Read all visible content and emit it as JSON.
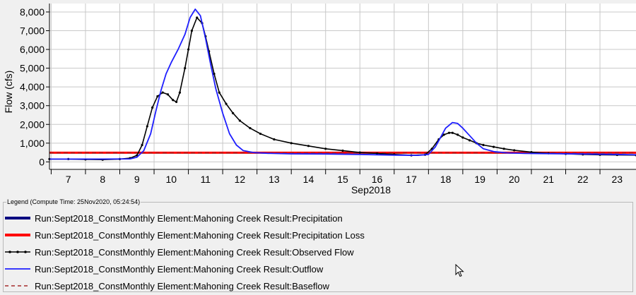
{
  "chart_data": {
    "type": "line",
    "title": "",
    "xlabel": "Sep2018",
    "ylabel": "Flow (cfs)",
    "xlim": [
      6.45,
      23.55
    ],
    "ylim": [
      -400,
      8450
    ],
    "x_ticks": [
      7,
      8,
      9,
      10,
      11,
      12,
      13,
      14,
      15,
      16,
      17,
      18,
      19,
      20,
      21,
      22,
      23
    ],
    "x_tick_labels": [
      "7",
      "8",
      "9",
      "10",
      "11",
      "12",
      "13",
      "14",
      "15",
      "16",
      "17",
      "18",
      "19",
      "20",
      "21",
      "22",
      "23"
    ],
    "y_ticks": [
      0,
      1000,
      2000,
      3000,
      4000,
      5000,
      6000,
      7000,
      8000
    ],
    "y_tick_labels": [
      "0",
      "1,000",
      "2,000",
      "3,000",
      "4,000",
      "5,000",
      "6,000",
      "7,000",
      "8,000"
    ],
    "grid": true,
    "legend_position": "bottom",
    "series": [
      {
        "name": "Run:Sept2018_ConstMonthly Element:Mahoning Creek Result:Precipitation",
        "color": "#000080",
        "style": "thick",
        "x": [],
        "y": []
      },
      {
        "name": "Run:Sept2018_ConstMonthly Element:Mahoning Creek Result:Precipitation Loss",
        "color": "#ff0000",
        "style": "thick",
        "x": [
          6.45,
          23.55
        ],
        "y": [
          490,
          490
        ]
      },
      {
        "name": "Run:Sept2018_ConstMonthly Element:Mahoning Creek Result:Observed Flow",
        "color": "#000000",
        "style": "markers",
        "x": [
          6.45,
          7.0,
          7.5,
          8.0,
          8.5,
          8.8,
          9.0,
          9.15,
          9.3,
          9.45,
          9.6,
          9.75,
          9.9,
          10.05,
          10.15,
          10.25,
          10.4,
          10.5,
          10.6,
          10.75,
          10.9,
          11.0,
          11.1,
          11.25,
          11.4,
          11.6,
          11.8,
          12.0,
          12.3,
          12.6,
          13.0,
          13.5,
          14.0,
          14.5,
          15.0,
          15.5,
          16.0,
          16.5,
          17.0,
          17.4,
          17.6,
          17.8,
          17.95,
          18.1,
          18.2,
          18.35,
          18.5,
          18.7,
          18.9,
          19.1,
          19.4,
          19.7,
          20.0,
          20.5,
          21.0,
          21.5,
          22.0,
          22.5,
          23.0,
          23.55
        ],
        "y": [
          150,
          150,
          130,
          120,
          150,
          200,
          350,
          900,
          1900,
          2900,
          3500,
          3700,
          3600,
          3300,
          3200,
          3700,
          5000,
          6000,
          7000,
          7700,
          7400,
          6700,
          5900,
          4700,
          3700,
          3100,
          2600,
          2200,
          1800,
          1500,
          1200,
          1000,
          850,
          700,
          600,
          500,
          450,
          400,
          350,
          380,
          700,
          1200,
          1450,
          1550,
          1550,
          1450,
          1300,
          1150,
          1000,
          900,
          800,
          700,
          620,
          520,
          460,
          430,
          400,
          380,
          370,
          360
        ]
      },
      {
        "name": "Run:Sept2018_ConstMonthly Element:Mahoning Creek Result:Outflow",
        "color": "#1f1fff",
        "style": "line",
        "x": [
          6.45,
          7.0,
          8.0,
          8.8,
          9.0,
          9.2,
          9.4,
          9.55,
          9.7,
          9.85,
          10.0,
          10.2,
          10.4,
          10.55,
          10.7,
          10.85,
          11.0,
          11.15,
          11.3,
          11.5,
          11.7,
          11.9,
          12.1,
          12.4,
          12.8,
          13.5,
          14.5,
          15.5,
          16.5,
          17.2,
          17.5,
          17.7,
          17.85,
          18.0,
          18.2,
          18.35,
          18.5,
          18.7,
          18.9,
          19.1,
          19.4,
          19.8,
          20.3,
          21.0,
          22.0,
          23.0,
          23.55
        ],
        "y": [
          150,
          150,
          150,
          160,
          250,
          600,
          1500,
          2700,
          3800,
          4700,
          5300,
          6000,
          6800,
          7700,
          8150,
          7800,
          6600,
          5200,
          3900,
          2600,
          1500,
          900,
          600,
          500,
          460,
          430,
          420,
          400,
          360,
          350,
          400,
          800,
          1300,
          1800,
          2100,
          2050,
          1800,
          1400,
          1000,
          700,
          550,
          480,
          450,
          440,
          420,
          400,
          380
        ]
      },
      {
        "name": "Run:Sept2018_ConstMonthly Element:Mahoning Creek Result:Baseflow",
        "color": "#a52a2a",
        "style": "dashed",
        "x": [
          6.45,
          23.55
        ],
        "y": [
          470,
          470
        ]
      }
    ]
  },
  "legend": {
    "title": "Legend (Compute Time: 25Nov2020, 05:24:54)"
  }
}
